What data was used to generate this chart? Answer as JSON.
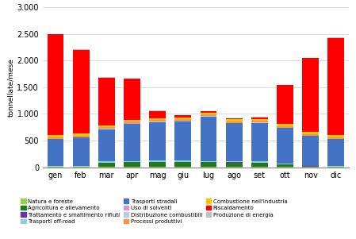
{
  "months": [
    "gen",
    "feb",
    "mar",
    "apr",
    "mag",
    "giu",
    "lug",
    "ago",
    "set",
    "ott",
    "nov",
    "dic"
  ],
  "categories": [
    "Natura e foreste",
    "Agricoltura e allevamento",
    "Trattamento e smaltimento rifiuti",
    "Trasporti off-road",
    "Trasporti stradali",
    "Uso di solventi",
    "Distribuzione combustibili",
    "Processi produttivi",
    "Combustione nell'industria",
    "Riscaldamento",
    "Produzione di energia"
  ],
  "colors": [
    "#92d050",
    "#1e7a1e",
    "#7030a0",
    "#92cddc",
    "#4472c4",
    "#cc99cc",
    "#b8cce4",
    "#f79646",
    "#ffc000",
    "#ff0000",
    "#bfbfbf"
  ],
  "values": {
    "Natura e foreste": [
      5,
      5,
      5,
      5,
      5,
      5,
      5,
      5,
      5,
      5,
      5,
      5
    ],
    "Agricoltura e allevamento": [
      5,
      5,
      80,
      90,
      95,
      95,
      90,
      85,
      80,
      50,
      10,
      5
    ],
    "Trattamento e smaltimento rifiuti": [
      5,
      5,
      5,
      5,
      5,
      5,
      5,
      5,
      5,
      5,
      5,
      5
    ],
    "Trasporti off-road": [
      10,
      10,
      20,
      20,
      20,
      20,
      20,
      20,
      20,
      15,
      10,
      10
    ],
    "Trasporti stradali": [
      500,
      530,
      600,
      700,
      720,
      740,
      830,
      710,
      720,
      660,
      555,
      500
    ],
    "Uso di solventi": [
      5,
      5,
      5,
      5,
      5,
      5,
      5,
      5,
      5,
      5,
      5,
      5
    ],
    "Distribuzione combustibili": [
      5,
      5,
      5,
      5,
      5,
      5,
      5,
      5,
      5,
      5,
      5,
      5
    ],
    "Processi produttivi": [
      30,
      30,
      30,
      30,
      30,
      30,
      30,
      30,
      30,
      30,
      30,
      30
    ],
    "Combustione nell'industria": [
      35,
      35,
      35,
      35,
      35,
      35,
      35,
      35,
      35,
      35,
      35,
      35
    ],
    "Riscaldamento": [
      1890,
      1565,
      890,
      760,
      130,
      30,
      20,
      15,
      30,
      730,
      1385,
      1820
    ],
    "Produzione di energia": [
      10,
      10,
      10,
      10,
      10,
      10,
      10,
      10,
      10,
      10,
      10,
      10
    ]
  },
  "ylim": [
    0,
    3000
  ],
  "yticks": [
    0,
    500,
    1000,
    1500,
    2000,
    2500,
    3000
  ],
  "ytick_labels": [
    "0",
    "500",
    "1.000",
    "1.500",
    "2.000",
    "2.500",
    "3.000"
  ],
  "ylabel": "tonnellate/mese",
  "background_color": "#ffffff",
  "grid_color": "#d0d0d0",
  "bar_width": 0.65,
  "legend_order": [
    [
      "Natura e foreste",
      "Agricoltura e allevamento",
      "Trattamento e smaltimento rifiuti"
    ],
    [
      "Trasporti off-road",
      "Trasporti stradali",
      "Uso di solventi"
    ],
    [
      "Distribuzione combustibili",
      "Processi produttivi",
      "Combustione nell'industria"
    ],
    [
      "Riscaldamento",
      "Produzione di energia",
      ""
    ]
  ]
}
